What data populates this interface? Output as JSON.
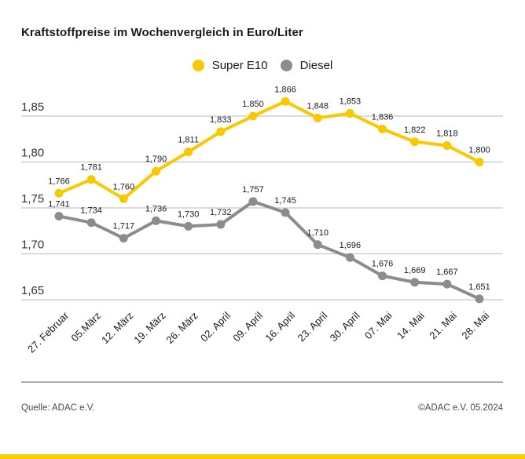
{
  "title": "Kraftstoffpreise im Wochenvergleich in Euro/Liter",
  "chart_data": {
    "type": "line",
    "categories": [
      "27. Februar",
      "05.März",
      "12. März",
      "19. März",
      "26. März",
      "02. April",
      "09. April",
      "16. April",
      "23. April",
      "30. April",
      "07. Mai",
      "14. Mai",
      "21. Mai",
      "28. Mai"
    ],
    "series": [
      {
        "name": "Super E10",
        "color": "#fac800",
        "values": [
          1.766,
          1.781,
          1.76,
          1.79,
          1.811,
          1.833,
          1.85,
          1.866,
          1.848,
          1.853,
          1.836,
          1.822,
          1.818,
          1.8
        ]
      },
      {
        "name": "Diesel",
        "color": "#8c8c8c",
        "values": [
          1.741,
          1.734,
          1.717,
          1.736,
          1.73,
          1.732,
          1.757,
          1.745,
          1.71,
          1.696,
          1.676,
          1.669,
          1.667,
          1.651
        ]
      }
    ],
    "yticks": [
      1.85,
      1.8,
      1.75,
      1.7,
      1.65
    ],
    "ylim": [
      1.63,
      1.88
    ],
    "ylabel": "Euro/Liter",
    "grid": true,
    "legend_position": "top-center",
    "decimal_separator": ","
  },
  "footer": {
    "source": "Quelle: ADAC e.V.",
    "copyright": "©ADAC e.V. 05.2024"
  },
  "colors": {
    "super_e10": "#fac800",
    "diesel": "#8c8c8c",
    "grid": "#c6c6c6",
    "text": "#1a1a1a",
    "axis_text": "#333333",
    "brand_bar": "#ffcc00"
  }
}
